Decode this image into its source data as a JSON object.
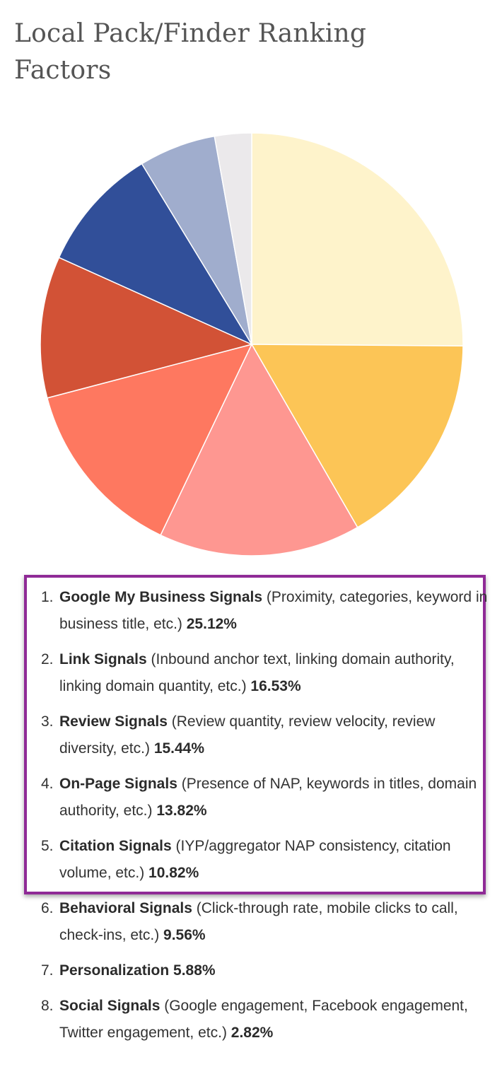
{
  "page": {
    "title": "Local Pack/Finder Ranking Factors"
  },
  "chart_data": {
    "type": "pie",
    "title": "",
    "slices": [
      {
        "label": "Google My Business Signals",
        "value": 25.12,
        "color": "#fef3cb"
      },
      {
        "label": "Link Signals",
        "value": 16.53,
        "color": "#fcc556"
      },
      {
        "label": "Review Signals",
        "value": 15.44,
        "color": "#fe9791"
      },
      {
        "label": "On-Page Signals",
        "value": 13.82,
        "color": "#fe7860"
      },
      {
        "label": "Citation Signals",
        "value": 10.82,
        "color": "#d25236"
      },
      {
        "label": "Behavioral Signals",
        "value": 9.56,
        "color": "#314f99"
      },
      {
        "label": "Personalization",
        "value": 5.88,
        "color": "#a0adcd"
      },
      {
        "label": "Social Signals",
        "value": 2.82,
        "color": "#ebe9eb"
      }
    ]
  },
  "factors": [
    {
      "num": "1.",
      "name": "Google My Business Signals",
      "desc": " (Proximity, categories, keyword in business title, etc.) ",
      "pct": "25.12%"
    },
    {
      "num": "2.",
      "name": "Link Signals",
      "desc": " (Inbound anchor text, linking domain authority, linking domain quantity, etc.) ",
      "pct": "16.53%"
    },
    {
      "num": "3.",
      "name": "Review Signals",
      "desc": " (Review quantity, review velocity, review diversity, etc.) ",
      "pct": "15.44%"
    },
    {
      "num": "4.",
      "name": "On-Page Signals",
      "desc": " (Presence of NAP, keywords in titles, domain authority, etc.) ",
      "pct": "13.82%"
    },
    {
      "num": "5.",
      "name": "Citation Signals",
      "desc": " (IYP/aggregator NAP consistency, citation volume, etc.) ",
      "pct": "10.82%"
    },
    {
      "num": "6.",
      "name": "Behavioral Signals",
      "desc": " (Click-through rate, mobile clicks to call, check-ins, etc.) ",
      "pct": "9.56%"
    },
    {
      "num": "7.",
      "name": "Personalization",
      "desc": "  ",
      "pct": "5.88%"
    },
    {
      "num": "8.",
      "name": "Social Signals",
      "desc": " (Google engagement, Facebook engagement, Twitter engagement, etc.) ",
      "pct": "2.82%"
    }
  ]
}
